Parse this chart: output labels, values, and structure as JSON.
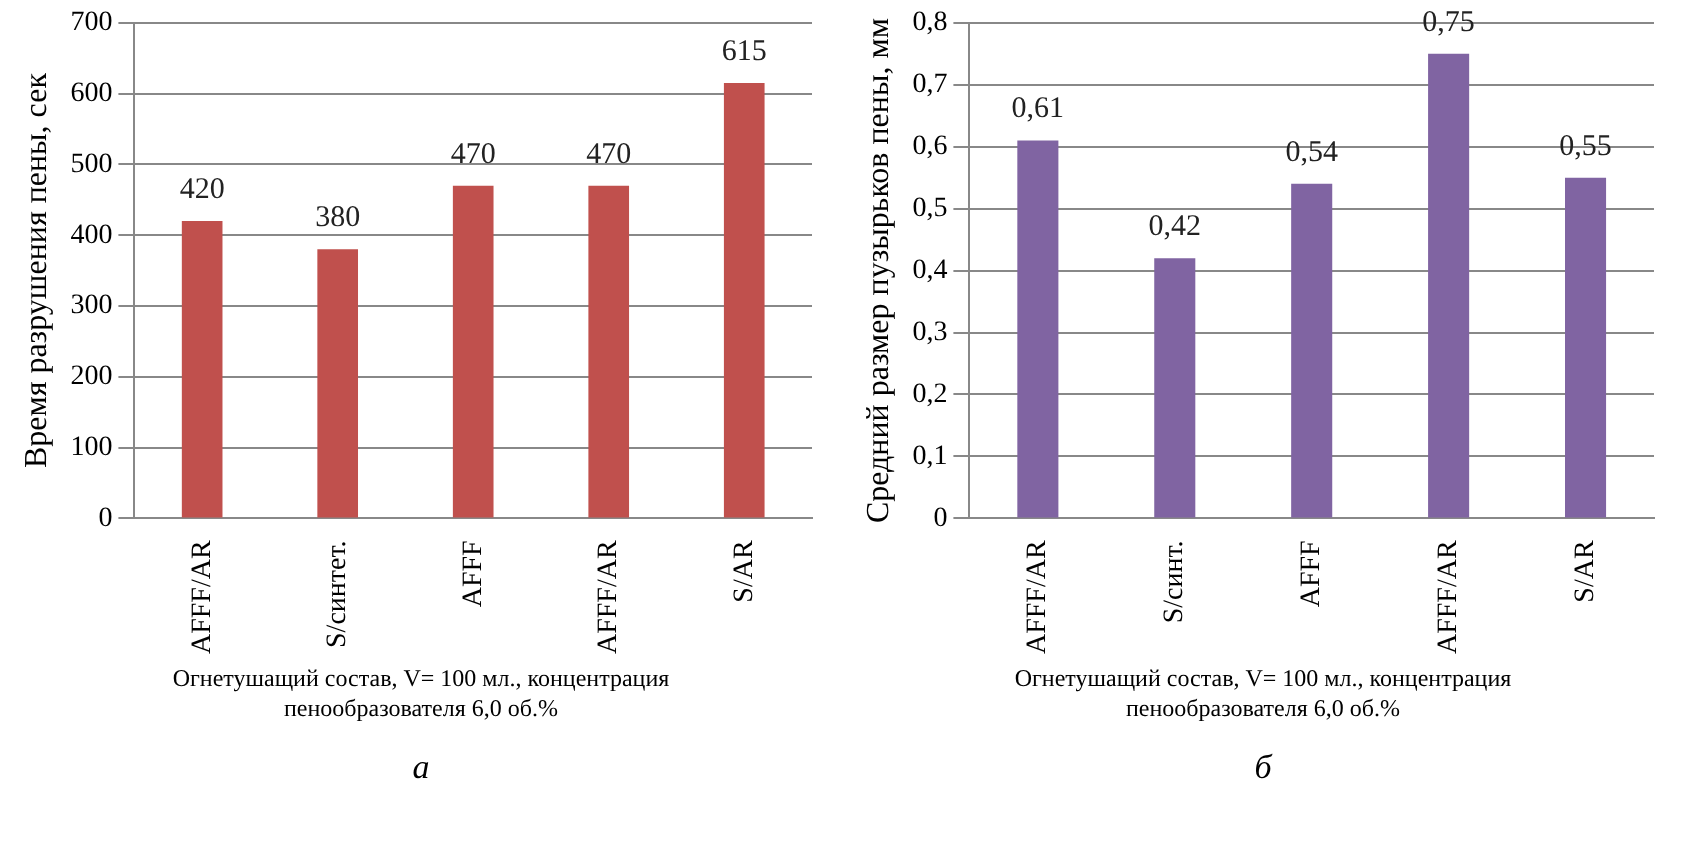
{
  "chart_data": [
    {
      "type": "bar",
      "ylabel": "Время разрушения пены, сек",
      "xlabel": "Огнетушащий состав, V= 100 мл., концентрация пенообразователя 6,0 об.%",
      "annotations": [
        "а"
      ],
      "categories": [
        "AFFF/AR",
        "S/синтет.",
        "AFFF",
        "AFFF/AR",
        "S/AR"
      ],
      "series": [
        {
          "color": "#c0504d",
          "values": [
            420,
            380,
            470,
            470,
            615
          ]
        }
      ],
      "ylim": [
        0,
        700
      ],
      "yticks": [
        0,
        100,
        200,
        300,
        400,
        500,
        600,
        700
      ],
      "grid": "y",
      "legend": false,
      "data_labels": true
    },
    {
      "type": "bar",
      "ylabel": "Средний размер пузырьков пены, мм",
      "xlabel": "Огнетушащий состав, V= 100 мл., концентрация пенообразователя 6,0 об.%",
      "annotations": [
        "б"
      ],
      "categories": [
        "AFFF/AR",
        "S/синт.",
        "AFFF",
        "AFFF/AR",
        "S/AR"
      ],
      "series": [
        {
          "color": "#8064a2",
          "values": [
            0.61,
            0.42,
            0.54,
            0.75,
            0.55
          ],
          "value_labels": [
            "0,61",
            "0,42",
            "0,54",
            "0,75",
            "0,55"
          ]
        }
      ],
      "ylim": [
        0,
        0.8
      ],
      "yticks": [
        0,
        {
          "value": 0.1,
          "label": "0,1"
        },
        {
          "value": 0.2,
          "label": "0,2"
        },
        {
          "value": 0.3,
          "label": "0,3"
        },
        {
          "value": 0.4,
          "label": "0,4"
        },
        {
          "value": 0.5,
          "label": "0,5"
        },
        {
          "value": 0.6,
          "label": "0,6"
        },
        {
          "value": 0.7,
          "label": "0,7"
        },
        {
          "value": 0.8,
          "label": "0,8"
        }
      ],
      "grid": "y",
      "legend": false
    }
  ]
}
